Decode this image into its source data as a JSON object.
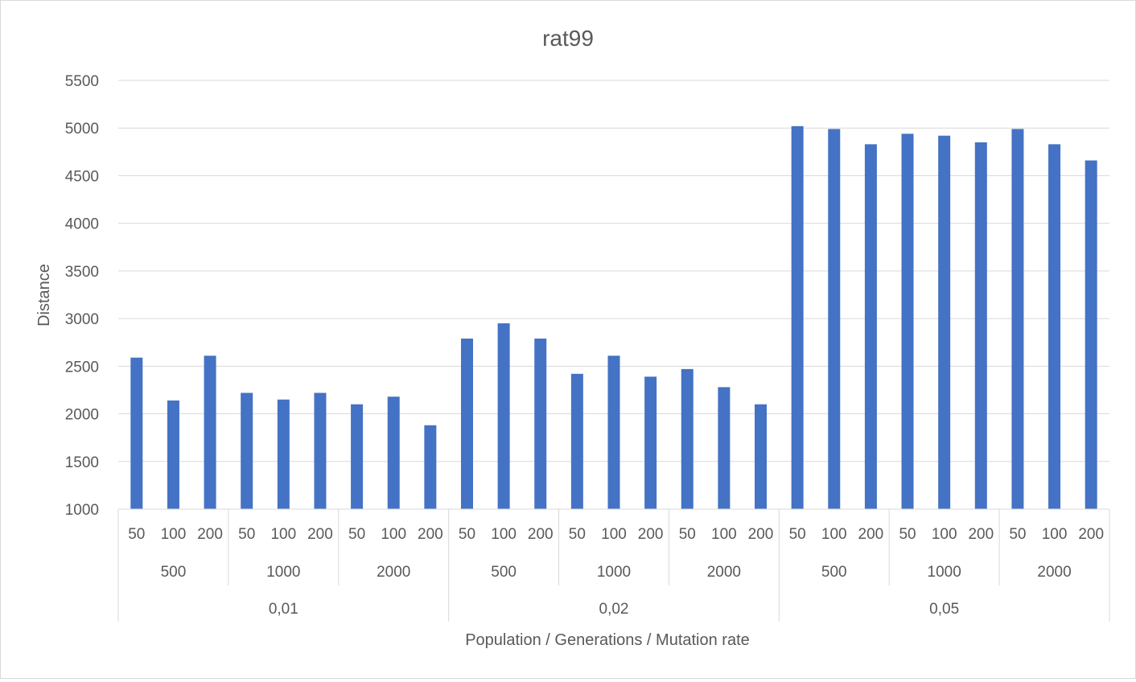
{
  "chart_data": {
    "type": "bar",
    "title": "rat99",
    "xlabel": "Population / Generations / Mutation rate",
    "ylabel": "Distance",
    "ylim": [
      1000,
      5500
    ],
    "yticks": [
      1000,
      1500,
      2000,
      2500,
      3000,
      3500,
      4000,
      4500,
      5000,
      5500
    ],
    "grid": true,
    "legend": "none",
    "bar_color": "#4472c4",
    "categories_levels": {
      "population": [
        "50",
        "100",
        "200",
        "50",
        "100",
        "200",
        "50",
        "100",
        "200",
        "50",
        "100",
        "200",
        "50",
        "100",
        "200",
        "50",
        "100",
        "200",
        "50",
        "100",
        "200",
        "50",
        "100",
        "200",
        "50",
        "100",
        "200"
      ],
      "generations": [
        "500",
        "1000",
        "2000",
        "500",
        "1000",
        "2000",
        "500",
        "1000",
        "2000"
      ],
      "mutation_rate": [
        "0,01",
        "0,02",
        "0,05"
      ]
    },
    "values": [
      2590,
      2140,
      2610,
      2220,
      2150,
      2220,
      2100,
      2180,
      1880,
      2790,
      2950,
      2790,
      2420,
      2610,
      2390,
      2470,
      2280,
      2100,
      5020,
      4990,
      4830,
      4940,
      4920,
      4850,
      4990,
      4830,
      4660
    ]
  }
}
